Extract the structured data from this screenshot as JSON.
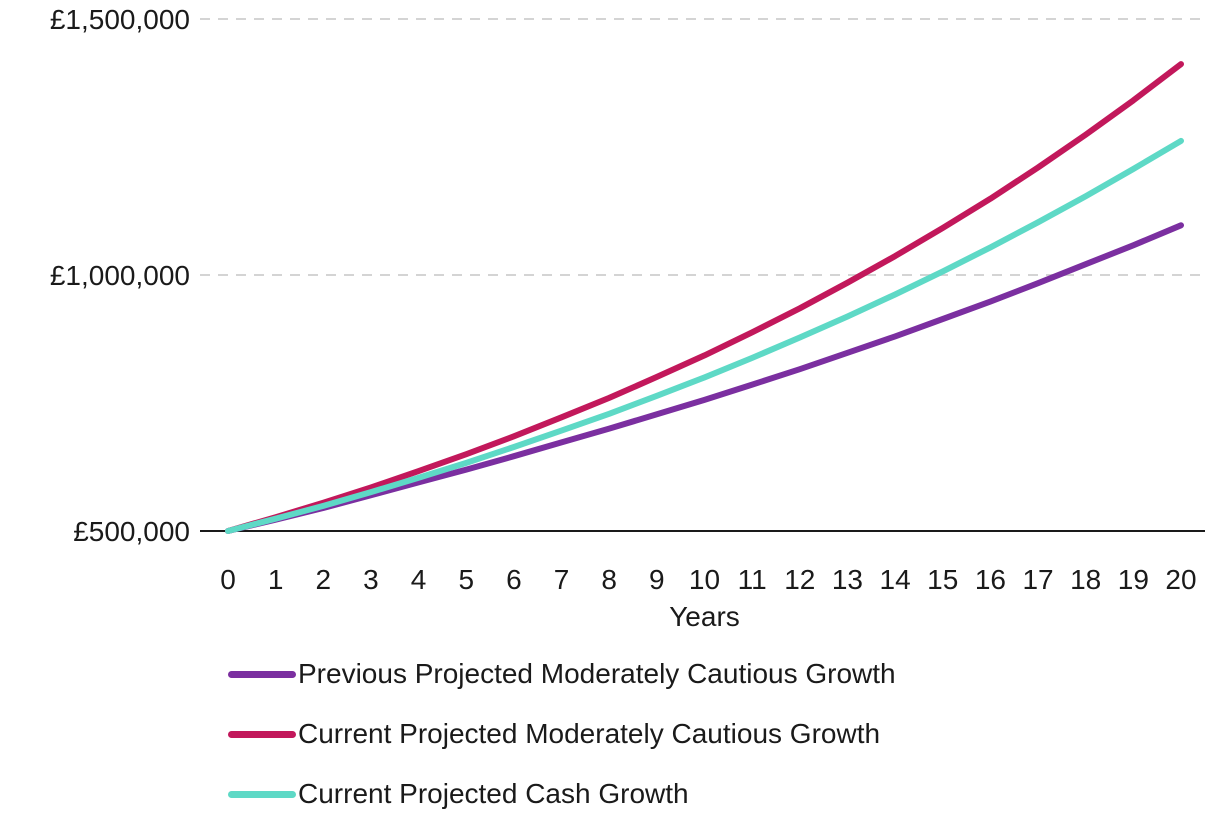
{
  "chart_data": {
    "type": "line",
    "title": "",
    "xlabel": "Years",
    "ylabel": "",
    "x": [
      0,
      1,
      2,
      3,
      4,
      5,
      6,
      7,
      8,
      9,
      10,
      11,
      12,
      13,
      14,
      15,
      16,
      17,
      18,
      19,
      20
    ],
    "ylim": [
      500000,
      1500000
    ],
    "yticks": [
      500000,
      1000000,
      1500000
    ],
    "ytick_labels": [
      "£500,000",
      "£1,000,000",
      "£1,500,000"
    ],
    "grid": "horizontal dashed",
    "legend_position": "bottom",
    "series": [
      {
        "name": "Previous Projected Moderately Cautious Growth",
        "color": "#7b2fa0",
        "values": [
          500000,
          522000,
          545000,
          570000,
          595000,
          620000,
          646000,
          673000,
          700000,
          728000,
          756000,
          786000,
          816000,
          848000,
          880000,
          914000,
          948000,
          984000,
          1021000,
          1058000,
          1097000
        ]
      },
      {
        "name": "Current Projected Moderately Cautious Growth",
        "color": "#c2185b",
        "values": [
          500000,
          527000,
          555000,
          585000,
          617000,
          650000,
          685000,
          722000,
          760000,
          801000,
          843000,
          888000,
          935000,
          985000,
          1037000,
          1092000,
          1149000,
          1210000,
          1274000,
          1341000,
          1412000
        ]
      },
      {
        "name": "Current Projected Cash Growth",
        "color": "#5ed9c6",
        "values": [
          500000,
          524000,
          549000,
          576000,
          604000,
          633000,
          664000,
          696000,
          729000,
          764000,
          800000,
          838000,
          878000,
          919000,
          962000,
          1007000,
          1054000,
          1103000,
          1154000,
          1207000,
          1262000
        ]
      }
    ]
  }
}
